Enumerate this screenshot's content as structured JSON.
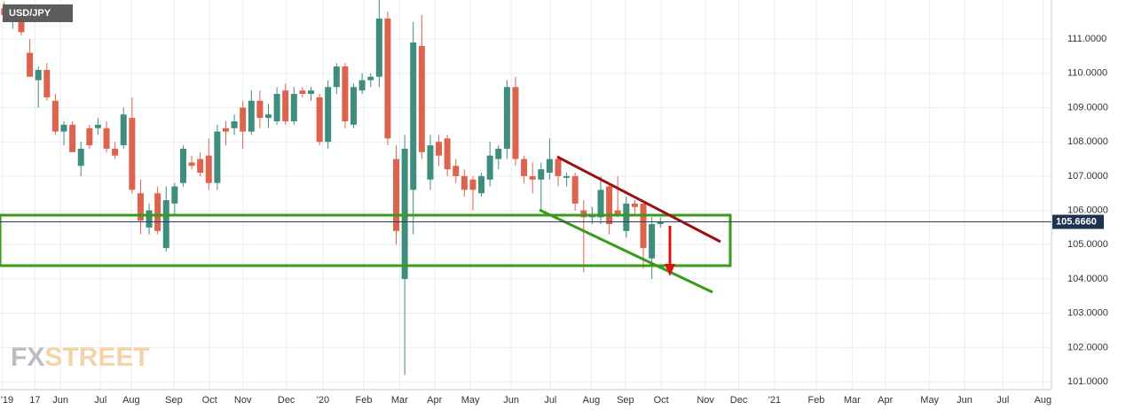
{
  "chart_data": {
    "type": "candlestick",
    "symbol": "USD/JPY",
    "watermark": [
      "FX",
      "STREET"
    ],
    "x": [
      0,
      1,
      2,
      3,
      4,
      5,
      6,
      7,
      8,
      9,
      10,
      11,
      12,
      13,
      14,
      15,
      16,
      17,
      18,
      19,
      20,
      21,
      22,
      23,
      24,
      25,
      26,
      27,
      28,
      29,
      30,
      31,
      32,
      33,
      34,
      35,
      36,
      37,
      38,
      39,
      40,
      41,
      42,
      43,
      44,
      45,
      46,
      47,
      48,
      49,
      50,
      51,
      52,
      53,
      54,
      55,
      56,
      57,
      58,
      59,
      60,
      61,
      62,
      63,
      64,
      65,
      66,
      67,
      68,
      69,
      70,
      71,
      72,
      73,
      74,
      75,
      76,
      77
    ],
    "open": [
      111.9,
      111.6,
      111.7,
      110.6,
      109.8,
      110.1,
      109.2,
      108.3,
      108.5,
      107.3,
      108.4,
      108.4,
      108.4,
      107.8,
      107.9,
      108.7,
      106.5,
      105.5,
      106.5,
      104.9,
      106.2,
      106.8,
      107.4,
      107.5,
      107.6,
      106.8,
      108.4,
      108.4,
      109.0,
      108.3,
      109.2,
      108.7,
      108.6,
      109.5,
      108.6,
      109.5,
      109.4,
      109.3,
      108.0,
      109.6,
      110.2,
      108.5,
      109.5,
      109.8,
      109.9,
      111.6,
      107.5,
      104.0,
      106.6,
      110.8,
      106.9,
      108.0,
      108.1,
      107.3,
      107.0,
      106.9,
      106.5,
      106.9,
      107.5,
      107.8,
      109.6,
      107.5,
      107.0,
      106.9,
      107.1,
      107.5,
      106.95,
      107.0,
      106.0,
      105.8,
      105.8,
      106.7,
      106.0,
      105.4,
      106.2,
      106.2,
      104.6,
      105.6
    ],
    "high": [
      112.1,
      111.9,
      111.9,
      111.0,
      110.2,
      110.3,
      109.4,
      108.6,
      108.6,
      108.0,
      108.5,
      108.7,
      108.6,
      108.0,
      109.0,
      109.3,
      106.9,
      106.2,
      106.7,
      106.7,
      106.8,
      107.9,
      107.6,
      107.7,
      108.1,
      108.5,
      108.6,
      108.8,
      109.2,
      109.5,
      109.5,
      109.1,
      109.6,
      109.7,
      109.6,
      109.6,
      109.6,
      109.4,
      109.8,
      110.3,
      110.3,
      109.7,
      110.0,
      110.0,
      112.2,
      111.8,
      107.9,
      108.2,
      111.5,
      111.7,
      108.2,
      108.2,
      108.2,
      107.5,
      107.2,
      107.0,
      107.1,
      108.0,
      107.9,
      109.8,
      109.9,
      107.6,
      107.4,
      107.4,
      108.1,
      107.6,
      107.1,
      107.1,
      106.3,
      106.1,
      107.0,
      106.8,
      107.0,
      106.4,
      106.3,
      106.1,
      105.8,
      105.8
    ],
    "low": [
      111.6,
      111.3,
      111.1,
      109.9,
      109.0,
      109.2,
      108.2,
      107.9,
      107.7,
      107.0,
      107.8,
      108.2,
      107.7,
      107.5,
      107.8,
      106.5,
      105.3,
      105.3,
      105.3,
      104.8,
      105.9,
      106.7,
      107.2,
      107.0,
      106.6,
      106.6,
      107.9,
      108.2,
      107.8,
      108.2,
      108.4,
      108.4,
      108.5,
      108.5,
      108.5,
      109.3,
      109.2,
      107.9,
      107.8,
      109.4,
      108.4,
      108.4,
      109.4,
      109.6,
      109.6,
      107.9,
      105.0,
      101.2,
      105.3,
      107.5,
      106.6,
      107.3,
      107.0,
      106.8,
      106.4,
      106.0,
      106.4,
      106.7,
      107.2,
      107.5,
      107.3,
      106.8,
      106.5,
      106.0,
      106.9,
      106.7,
      106.7,
      106.0,
      104.2,
      105.6,
      105.6,
      105.3,
      105.8,
      105.2,
      105.9,
      104.3,
      104.0,
      105.5
    ],
    "close": [
      111.7,
      111.8,
      111.2,
      109.9,
      110.1,
      109.3,
      108.3,
      108.5,
      107.7,
      107.8,
      107.9,
      108.5,
      107.8,
      107.6,
      108.8,
      106.6,
      105.7,
      106.0,
      105.4,
      106.3,
      106.7,
      107.8,
      107.3,
      107.1,
      106.8,
      108.3,
      108.3,
      108.6,
      108.3,
      109.2,
      108.7,
      108.8,
      109.4,
      108.6,
      109.4,
      109.4,
      109.5,
      108.0,
      109.6,
      110.2,
      108.6,
      109.6,
      109.8,
      109.9,
      111.6,
      108.1,
      105.4,
      107.8,
      110.9,
      107.7,
      107.9,
      107.6,
      107.2,
      107.0,
      106.6,
      106.6,
      107.0,
      107.6,
      107.8,
      109.6,
      107.5,
      107.0,
      106.9,
      107.2,
      107.5,
      107.0,
      107.0,
      106.2,
      105.8,
      105.9,
      106.6,
      105.6,
      105.9,
      106.2,
      106.1,
      104.9,
      105.6,
      105.666
    ],
    "up_color": "#3f8d7c",
    "down_color": "#dd634f",
    "current_price": {
      "value": 105.666,
      "label": "105.6660"
    },
    "ylim": [
      100.77,
      112.14
    ],
    "yticks": [
      {
        "value": 101,
        "label": "101.0000"
      },
      {
        "value": 102,
        "label": "102.0000"
      },
      {
        "value": 103,
        "label": "103.0000"
      },
      {
        "value": 104,
        "label": "104.0000"
      },
      {
        "value": 105,
        "label": "105.0000"
      },
      {
        "value": 106,
        "label": "106.0000"
      },
      {
        "value": 107,
        "label": "107.0000"
      },
      {
        "value": 108,
        "label": "108.0000"
      },
      {
        "value": 109,
        "label": "109.0000"
      },
      {
        "value": 110,
        "label": "110.0000"
      },
      {
        "value": 111,
        "label": "111.0000"
      }
    ],
    "xlim": [
      -0.5,
      122.9
    ],
    "xticks": [
      {
        "value": -0.2,
        "label": "'19"
      },
      {
        "value": 3.6,
        "label": "17"
      },
      {
        "value": 6.6,
        "label": "Jun"
      },
      {
        "value": 11.3,
        "label": "Jul"
      },
      {
        "value": 14.9,
        "label": "Aug"
      },
      {
        "value": 19.9,
        "label": "Sep"
      },
      {
        "value": 24.1,
        "label": "Oct"
      },
      {
        "value": 28.0,
        "label": "Nov"
      },
      {
        "value": 33.1,
        "label": "Dec"
      },
      {
        "value": 37.4,
        "label": "'20"
      },
      {
        "value": 42.2,
        "label": "Feb"
      },
      {
        "value": 46.4,
        "label": "Mar"
      },
      {
        "value": 50.5,
        "label": "Apr"
      },
      {
        "value": 54.7,
        "label": "May"
      },
      {
        "value": 59.5,
        "label": "Jun"
      },
      {
        "value": 64.1,
        "label": "Jul"
      },
      {
        "value": 68.9,
        "label": "Aug"
      },
      {
        "value": 72.9,
        "label": "Sep"
      },
      {
        "value": 77.1,
        "label": "Oct"
      },
      {
        "value": 82.3,
        "label": "Nov"
      },
      {
        "value": 86.2,
        "label": "Dec"
      },
      {
        "value": 90.4,
        "label": "'21"
      },
      {
        "value": 95.3,
        "label": "Feb"
      },
      {
        "value": 99.5,
        "label": "Mar"
      },
      {
        "value": 103.4,
        "label": "Apr"
      },
      {
        "value": 108.6,
        "label": "May"
      },
      {
        "value": 112.7,
        "label": "Jun"
      },
      {
        "value": 117.2,
        "label": "Jul"
      },
      {
        "value": 121.9,
        "label": "Aug"
      }
    ],
    "grid": true
  }
}
